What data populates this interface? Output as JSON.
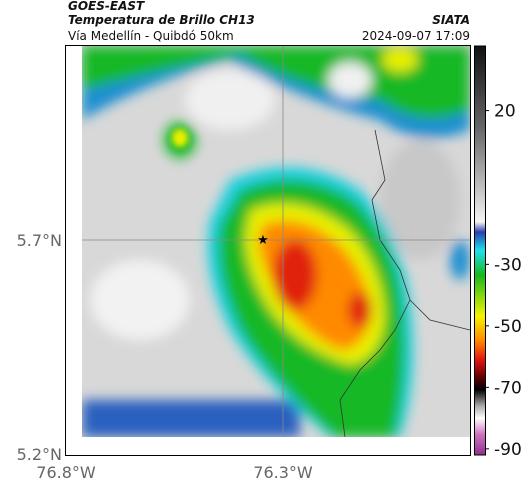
{
  "header": {
    "title": "GOES-EAST",
    "subtitle": "Temperatura de Brillo CH13",
    "location": "Vía Medellín - Quibdó 50km",
    "source": "SIATA",
    "datetime": "2024-09-07 17:09"
  },
  "axes": {
    "xticks": [
      "76.8°W",
      "76.3°W"
    ],
    "yticks": [
      "5.7°N",
      "5.2°N"
    ]
  },
  "colorbar": {
    "lim": [
      -92,
      41
    ],
    "ticks": [
      20,
      -30,
      -50,
      -70,
      -90
    ]
  }
}
